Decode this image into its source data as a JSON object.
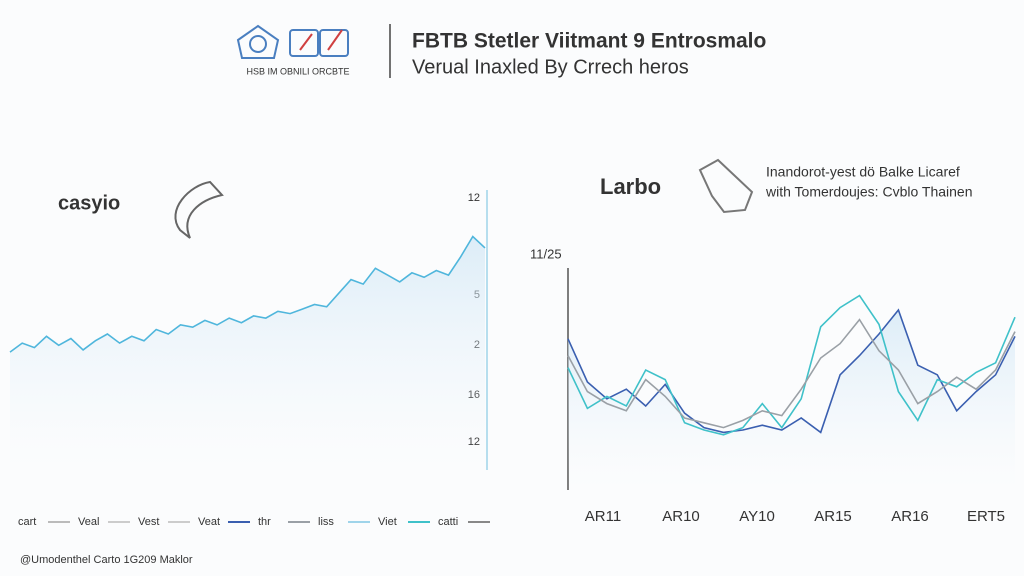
{
  "header": {
    "title": "FBTB Stetler Viitmant 9 Entrosmalo",
    "subtitle": "Verual Inaxled By Crrech heros",
    "logo_caption": "HSB IM OBNILI ORCBTE"
  },
  "chart_data": [
    {
      "type": "line",
      "title": "casyio",
      "axis_text": [
        "12",
        "5",
        "2",
        "16",
        "12"
      ],
      "ylim": [
        0,
        12
      ],
      "color": "#4fb6dc",
      "values": [
        5.2,
        5.6,
        5.4,
        5.9,
        5.5,
        5.8,
        5.3,
        5.7,
        6.0,
        5.6,
        5.9,
        5.7,
        6.2,
        6.0,
        6.4,
        6.3,
        6.6,
        6.4,
        6.7,
        6.5,
        6.8,
        6.7,
        7.0,
        6.9,
        7.1,
        7.3,
        7.2,
        7.8,
        8.4,
        8.2,
        8.9,
        8.6,
        8.3,
        8.7,
        8.5,
        8.8,
        8.6,
        9.4,
        10.3,
        9.8
      ]
    },
    {
      "type": "line",
      "title": "Larbo",
      "annotation": [
        "Inandorot-yest dö Balke Licaref",
        "with Tomerdoujes: Cvblo Thainen"
      ],
      "axis_text": [
        "11/25"
      ],
      "x_labels": [
        "AR11",
        "AR10",
        "AY10",
        "AR15",
        "AR16",
        "ERT5"
      ],
      "ylim": [
        0,
        10
      ],
      "series": [
        {
          "color": "#3a5fb0",
          "values": [
            6.3,
            4.5,
            3.8,
            4.2,
            3.5,
            4.4,
            3.2,
            2.6,
            2.4,
            2.5,
            2.7,
            2.5,
            3.0,
            2.4,
            4.8,
            5.6,
            6.5,
            7.5,
            5.2,
            4.8,
            3.3,
            4.1,
            4.8,
            6.4
          ]
        },
        {
          "color": "#3fc1c9",
          "values": [
            5.1,
            3.4,
            3.9,
            3.5,
            5.0,
            4.6,
            2.8,
            2.5,
            2.3,
            2.6,
            3.6,
            2.6,
            3.8,
            6.8,
            7.6,
            8.1,
            6.9,
            4.1,
            2.9,
            4.6,
            4.3,
            4.9,
            5.3,
            7.2
          ]
        },
        {
          "color": "#9aa0a6",
          "values": [
            5.6,
            4.1,
            3.6,
            3.3,
            4.6,
            3.9,
            3.0,
            2.8,
            2.6,
            2.9,
            3.3,
            3.1,
            4.2,
            5.5,
            6.1,
            7.1,
            5.8,
            5.0,
            3.6,
            4.1,
            4.7,
            4.2,
            5.0,
            6.6
          ]
        }
      ]
    }
  ],
  "legend": [
    {
      "name": "cart",
      "color": "#bbbbbb"
    },
    {
      "name": "Veal",
      "color": "#cccccc"
    },
    {
      "name": "Vest",
      "color": "#cccccc"
    },
    {
      "name": "Veat",
      "color": "#3a5fb0"
    },
    {
      "name": "thr",
      "color": "#9aa0a6"
    },
    {
      "name": "liss",
      "color": "#9fd4ea"
    },
    {
      "name": "Viet",
      "color": "#3fc1c9"
    },
    {
      "name": "catti",
      "color": "#888888"
    }
  ],
  "footer": "@Umodenthel Carto 1G209 Maklor"
}
